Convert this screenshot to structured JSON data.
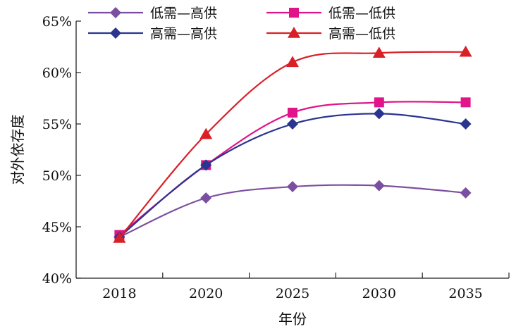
{
  "chart_data": {
    "type": "line",
    "title": "",
    "xlabel": "年份",
    "ylabel": "对外依存度",
    "categories": [
      "2018",
      "2020",
      "2025",
      "2030",
      "2035"
    ],
    "ylim": [
      40,
      65
    ],
    "yticks": [
      "40%",
      "45%",
      "50%",
      "55%",
      "60%",
      "65%"
    ],
    "grid": false,
    "legend_position": "top",
    "series": [
      {
        "name": "低需—高供",
        "color": "#7b4fa0",
        "marker": "diamond",
        "values": [
          44.0,
          47.8,
          48.9,
          49.0,
          48.3
        ]
      },
      {
        "name": "低需—低供",
        "color": "#e0158a",
        "marker": "square",
        "values": [
          44.2,
          51.0,
          56.1,
          57.1,
          57.1
        ]
      },
      {
        "name": "高需—高供",
        "color": "#2a3590",
        "marker": "diamond",
        "values": [
          44.0,
          51.0,
          55.0,
          56.0,
          55.0
        ]
      },
      {
        "name": "高需—低供",
        "color": "#d92027",
        "marker": "triangle",
        "values": [
          43.9,
          54.0,
          61.0,
          61.9,
          62.0
        ]
      }
    ]
  }
}
